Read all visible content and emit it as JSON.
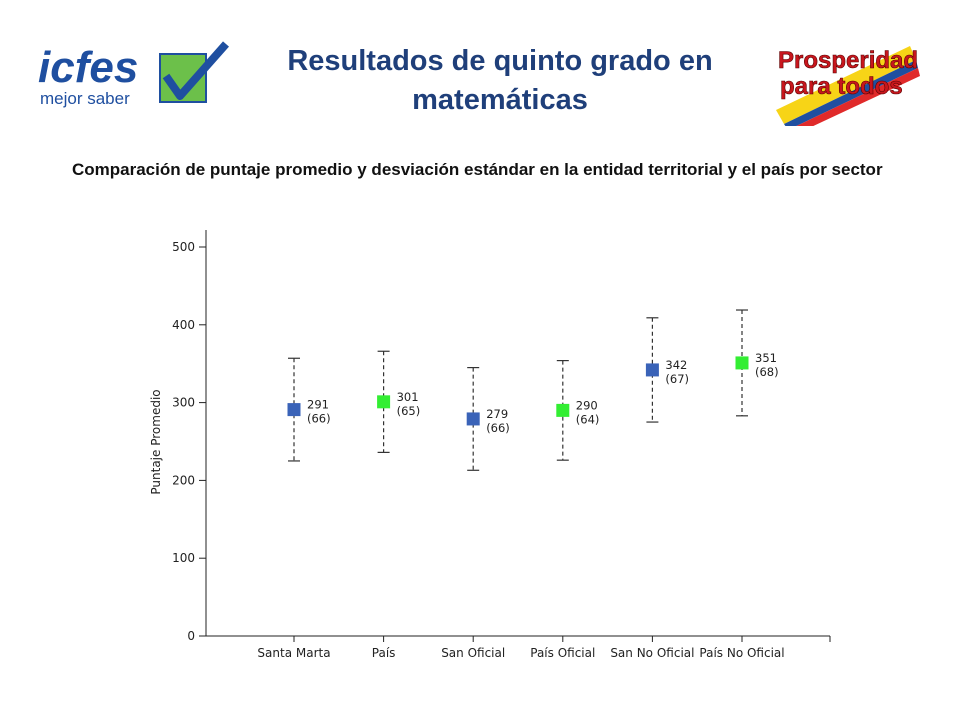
{
  "header": {
    "title": "Resultados de quinto grado en matemáticas",
    "subtitle": "Comparación de puntaje promedio y desviación estándar en la entidad territorial y el país por sector"
  },
  "logos": {
    "left": {
      "main": "icfes",
      "tagline": "mejor saber",
      "mark": "check-icon"
    },
    "right": {
      "line1": "Prosperidad",
      "line2": "para todos"
    }
  },
  "colors": {
    "title": "#1f3f7a",
    "territorial": "#3a63b8",
    "country": "#33ee33",
    "icfes_blue": "#1f4fa0",
    "icfes_green": "#6cc04a"
  },
  "chart_data": {
    "type": "scatter",
    "ylabel": "Puntaje Promedio",
    "ylim": [
      0,
      500
    ],
    "yticks": [
      0,
      100,
      200,
      300,
      400,
      500
    ],
    "categories": [
      "Santa Marta",
      "País",
      "San Oficial",
      "País Oficial",
      "San No Oficial",
      "País No Oficial"
    ],
    "values": [
      291,
      301,
      279,
      290,
      342,
      351
    ],
    "std": [
      66,
      65,
      66,
      64,
      67,
      68
    ],
    "value_labels": [
      "291",
      "301",
      "279",
      "290",
      "342",
      "351"
    ],
    "std_labels": [
      "(66)",
      "(65)",
      "(66)",
      "(64)",
      "(67)",
      "(68)"
    ],
    "marker_colors": [
      "#3a63b8",
      "#33ee33",
      "#3a63b8",
      "#33ee33",
      "#3a63b8",
      "#33ee33"
    ],
    "grid": false,
    "legend": "none"
  }
}
